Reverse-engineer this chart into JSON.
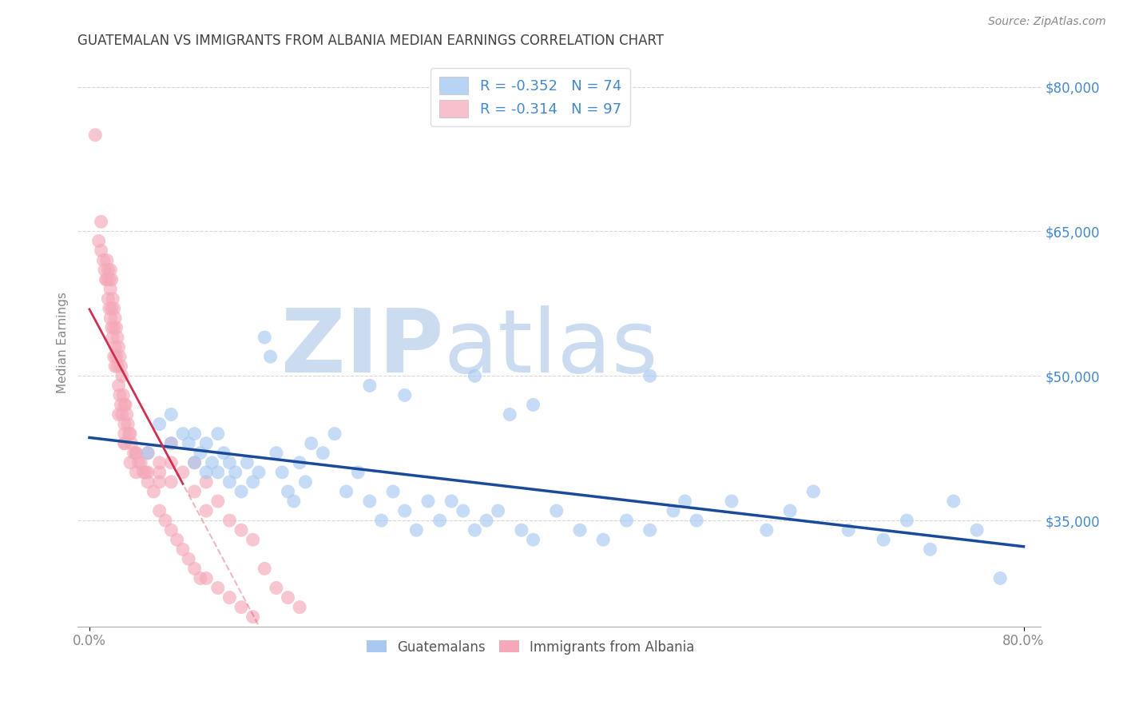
{
  "title": "GUATEMALAN VS IMMIGRANTS FROM ALBANIA MEDIAN EARNINGS CORRELATION CHART",
  "source": "Source: ZipAtlas.com",
  "ylabel": "Median Earnings",
  "right_yticks": [
    35000,
    50000,
    65000,
    80000
  ],
  "right_ytick_labels": [
    "$35,000",
    "$50,000",
    "$65,000",
    "$80,000"
  ],
  "xlim_min": -0.01,
  "xlim_max": 0.815,
  "ylim_min": 24000,
  "ylim_max": 83000,
  "blue_R": -0.352,
  "blue_N": 74,
  "pink_R": -0.314,
  "pink_N": 97,
  "blue_color": "#a8c8f0",
  "pink_color": "#f4a8b8",
  "blue_line_color": "#1a4a9a",
  "pink_line_color": "#d03050",
  "legend_blue_color": "#b8d4f4",
  "legend_pink_color": "#f8c0cc",
  "watermark": "ZIPatlas",
  "watermark_color": "#ccdcf0",
  "background_color": "#ffffff",
  "grid_color": "#cccccc",
  "title_color": "#404040",
  "label_color": "#4488cc",
  "source_color": "#888888",
  "blue_x": [
    0.05,
    0.06,
    0.07,
    0.07,
    0.08,
    0.085,
    0.09,
    0.09,
    0.095,
    0.1,
    0.1,
    0.105,
    0.11,
    0.11,
    0.115,
    0.12,
    0.12,
    0.125,
    0.13,
    0.135,
    0.14,
    0.145,
    0.15,
    0.155,
    0.16,
    0.165,
    0.17,
    0.175,
    0.18,
    0.185,
    0.19,
    0.2,
    0.21,
    0.22,
    0.23,
    0.24,
    0.25,
    0.26,
    0.27,
    0.28,
    0.29,
    0.3,
    0.31,
    0.32,
    0.33,
    0.34,
    0.35,
    0.37,
    0.38,
    0.4,
    0.42,
    0.44,
    0.46,
    0.48,
    0.5,
    0.52,
    0.55,
    0.58,
    0.6,
    0.62,
    0.65,
    0.68,
    0.7,
    0.72,
    0.74,
    0.76,
    0.78,
    0.24,
    0.27,
    0.33,
    0.36,
    0.38,
    0.48,
    0.51
  ],
  "blue_y": [
    42000,
    45000,
    43000,
    46000,
    44000,
    43000,
    41000,
    44000,
    42000,
    40000,
    43000,
    41000,
    44000,
    40000,
    42000,
    41000,
    39000,
    40000,
    38000,
    41000,
    39000,
    40000,
    54000,
    52000,
    42000,
    40000,
    38000,
    37000,
    41000,
    39000,
    43000,
    42000,
    44000,
    38000,
    40000,
    37000,
    35000,
    38000,
    36000,
    34000,
    37000,
    35000,
    37000,
    36000,
    34000,
    35000,
    36000,
    34000,
    33000,
    36000,
    34000,
    33000,
    35000,
    34000,
    36000,
    35000,
    37000,
    34000,
    36000,
    38000,
    34000,
    33000,
    35000,
    32000,
    37000,
    34000,
    29000,
    49000,
    48000,
    50000,
    46000,
    47000,
    50000,
    37000
  ],
  "pink_x": [
    0.005,
    0.008,
    0.01,
    0.01,
    0.012,
    0.013,
    0.014,
    0.015,
    0.015,
    0.016,
    0.016,
    0.017,
    0.017,
    0.018,
    0.018,
    0.018,
    0.019,
    0.019,
    0.019,
    0.02,
    0.02,
    0.021,
    0.021,
    0.021,
    0.022,
    0.022,
    0.022,
    0.023,
    0.023,
    0.024,
    0.024,
    0.025,
    0.025,
    0.026,
    0.026,
    0.027,
    0.027,
    0.028,
    0.028,
    0.029,
    0.03,
    0.03,
    0.031,
    0.032,
    0.033,
    0.034,
    0.035,
    0.036,
    0.038,
    0.04,
    0.042,
    0.044,
    0.046,
    0.048,
    0.05,
    0.055,
    0.06,
    0.065,
    0.07,
    0.075,
    0.08,
    0.085,
    0.09,
    0.095,
    0.1,
    0.11,
    0.12,
    0.13,
    0.14,
    0.15,
    0.16,
    0.17,
    0.18,
    0.06,
    0.07,
    0.07,
    0.07,
    0.08,
    0.09,
    0.09,
    0.1,
    0.1,
    0.11,
    0.12,
    0.13,
    0.14,
    0.03,
    0.04,
    0.04,
    0.05,
    0.05,
    0.06,
    0.06,
    0.025,
    0.03,
    0.03,
    0.035
  ],
  "pink_y": [
    75000,
    64000,
    66000,
    63000,
    62000,
    61000,
    60000,
    62000,
    60000,
    61000,
    58000,
    60000,
    57000,
    61000,
    59000,
    56000,
    60000,
    57000,
    55000,
    58000,
    54000,
    57000,
    55000,
    52000,
    56000,
    53000,
    51000,
    55000,
    52000,
    54000,
    51000,
    53000,
    49000,
    52000,
    48000,
    51000,
    47000,
    50000,
    46000,
    48000,
    47000,
    45000,
    47000,
    46000,
    45000,
    44000,
    44000,
    43000,
    42000,
    42000,
    41000,
    41000,
    40000,
    40000,
    39000,
    38000,
    36000,
    35000,
    34000,
    33000,
    32000,
    31000,
    30000,
    29000,
    29000,
    28000,
    27000,
    26000,
    25000,
    30000,
    28000,
    27000,
    26000,
    40000,
    41000,
    43000,
    39000,
    40000,
    38000,
    41000,
    36000,
    39000,
    37000,
    35000,
    34000,
    33000,
    43000,
    42000,
    40000,
    42000,
    40000,
    41000,
    39000,
    46000,
    44000,
    43000,
    41000
  ]
}
